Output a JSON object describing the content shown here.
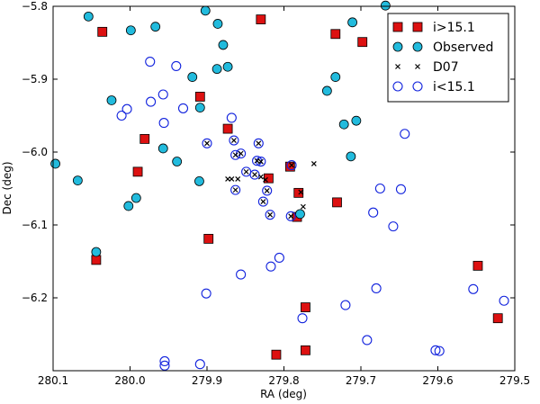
{
  "chart_data": {
    "type": "scatter",
    "title": "",
    "xlabel": "RA (deg)",
    "ylabel": "Dec (deg)",
    "xlim": [
      280.1,
      279.5
    ],
    "ylim": [
      -6.3,
      -5.8
    ],
    "grid": false,
    "legend_position": "top-right",
    "colors": {
      "red": "#dd1111",
      "cyan": "#22bbdd",
      "blue": "#1122dd",
      "black": "#000000"
    },
    "x_ticks": [
      {
        "value": 280.1,
        "label": "280.1"
      },
      {
        "value": 280.0,
        "label": "280.0"
      },
      {
        "value": 279.9,
        "label": "279.9"
      },
      {
        "value": 279.8,
        "label": "279.8"
      },
      {
        "value": 279.7,
        "label": "279.7"
      },
      {
        "value": 279.6,
        "label": "279.6"
      },
      {
        "value": 279.5,
        "label": "279.5"
      }
    ],
    "y_ticks": [
      {
        "value": -5.8,
        "label": "−5.8"
      },
      {
        "value": -5.9,
        "label": "−5.9"
      },
      {
        "value": -6.0,
        "label": "−6.0"
      },
      {
        "value": -6.1,
        "label": "−6.1"
      },
      {
        "value": -6.2,
        "label": "−6.2"
      }
    ],
    "series": [
      {
        "name": "i>15.1",
        "marker": "square",
        "color": "#dd1111",
        "points": [
          [
            280.036,
            -5.835
          ],
          [
            279.83,
            -5.818
          ],
          [
            279.733,
            -5.838
          ],
          [
            279.698,
            -5.849
          ],
          [
            279.909,
            -5.924
          ],
          [
            279.981,
            -5.982
          ],
          [
            279.99,
            -6.027
          ],
          [
            279.873,
            -5.968
          ],
          [
            279.792,
            -6.02
          ],
          [
            279.82,
            -6.036
          ],
          [
            279.781,
            -6.056
          ],
          [
            279.783,
            -6.089
          ],
          [
            279.731,
            -6.069
          ],
          [
            279.898,
            -6.119
          ],
          [
            280.044,
            -6.148
          ],
          [
            279.548,
            -6.156
          ],
          [
            279.772,
            -6.213
          ],
          [
            279.522,
            -6.228
          ],
          [
            279.81,
            -6.278
          ],
          [
            279.772,
            -6.272
          ]
        ]
      },
      {
        "name": "Observed",
        "marker": "circle-filled",
        "color": "#22bbdd",
        "points": [
          [
            280.054,
            -5.814
          ],
          [
            279.902,
            -5.806
          ],
          [
            279.668,
            -5.799
          ],
          [
            279.999,
            -5.833
          ],
          [
            279.967,
            -5.828
          ],
          [
            279.886,
            -5.824
          ],
          [
            279.711,
            -5.822
          ],
          [
            279.879,
            -5.853
          ],
          [
            279.919,
            -5.897
          ],
          [
            279.887,
            -5.886
          ],
          [
            279.873,
            -5.883
          ],
          [
            279.733,
            -5.897
          ],
          [
            279.744,
            -5.916
          ],
          [
            280.024,
            -5.929
          ],
          [
            279.909,
            -5.939
          ],
          [
            279.706,
            -5.957
          ],
          [
            279.722,
            -5.962
          ],
          [
            279.957,
            -5.995
          ],
          [
            279.939,
            -6.013
          ],
          [
            279.713,
            -6.006
          ],
          [
            280.097,
            -6.016
          ],
          [
            280.068,
            -6.039
          ],
          [
            279.91,
            -6.04
          ],
          [
            279.992,
            -6.063
          ],
          [
            280.002,
            -6.074
          ],
          [
            279.779,
            -6.085
          ],
          [
            280.044,
            -6.137
          ]
        ]
      },
      {
        "name": "D07",
        "marker": "x",
        "color": "#000000",
        "points": [
          [
            279.9,
            -5.988
          ],
          [
            279.865,
            -5.984
          ],
          [
            279.833,
            -5.988
          ],
          [
            279.863,
            -6.004
          ],
          [
            279.856,
            -6.002
          ],
          [
            279.835,
            -6.012
          ],
          [
            279.83,
            -6.013
          ],
          [
            279.79,
            -6.018
          ],
          [
            279.761,
            -6.016
          ],
          [
            279.849,
            -6.027
          ],
          [
            279.838,
            -6.031
          ],
          [
            279.83,
            -6.034
          ],
          [
            279.824,
            -6.038
          ],
          [
            279.86,
            -6.037
          ],
          [
            279.868,
            -6.037
          ],
          [
            279.863,
            -6.052
          ],
          [
            279.778,
            -6.055
          ],
          [
            279.822,
            -6.053
          ],
          [
            279.827,
            -6.068
          ],
          [
            279.775,
            -6.075
          ],
          [
            279.818,
            -6.086
          ],
          [
            279.791,
            -6.088
          ],
          [
            279.873,
            -6.037
          ]
        ]
      },
      {
        "name": "i<15.1",
        "marker": "circle-open",
        "color": "#1122dd",
        "points": [
          [
            279.974,
            -5.876
          ],
          [
            279.94,
            -5.882
          ],
          [
            280.011,
            -5.95
          ],
          [
            280.004,
            -5.941
          ],
          [
            279.973,
            -5.931
          ],
          [
            279.957,
            -5.921
          ],
          [
            279.931,
            -5.94
          ],
          [
            279.956,
            -5.96
          ],
          [
            279.868,
            -5.953
          ],
          [
            279.9,
            -5.988
          ],
          [
            279.865,
            -5.984
          ],
          [
            279.833,
            -5.988
          ],
          [
            279.863,
            -6.004
          ],
          [
            279.856,
            -6.002
          ],
          [
            279.835,
            -6.012
          ],
          [
            279.83,
            -6.013
          ],
          [
            279.79,
            -6.018
          ],
          [
            279.849,
            -6.027
          ],
          [
            279.838,
            -6.031
          ],
          [
            279.863,
            -6.052
          ],
          [
            279.822,
            -6.053
          ],
          [
            279.827,
            -6.068
          ],
          [
            279.818,
            -6.086
          ],
          [
            279.791,
            -6.088
          ],
          [
            279.643,
            -5.975
          ],
          [
            279.675,
            -6.05
          ],
          [
            279.648,
            -6.051
          ],
          [
            279.684,
            -6.083
          ],
          [
            279.658,
            -6.102
          ],
          [
            279.817,
            -6.157
          ],
          [
            279.806,
            -6.145
          ],
          [
            279.856,
            -6.168
          ],
          [
            279.68,
            -6.187
          ],
          [
            279.901,
            -6.194
          ],
          [
            279.554,
            -6.188
          ],
          [
            279.514,
            -6.204
          ],
          [
            279.72,
            -6.21
          ],
          [
            279.776,
            -6.228
          ],
          [
            279.692,
            -6.258
          ],
          [
            279.603,
            -6.272
          ],
          [
            279.598,
            -6.273
          ],
          [
            279.955,
            -6.287
          ],
          [
            279.955,
            -6.293
          ],
          [
            279.909,
            -6.291
          ]
        ]
      }
    ],
    "legend": [
      {
        "label": "i>15.1",
        "marker": "square",
        "color": "#dd1111"
      },
      {
        "label": "Observed",
        "marker": "circle-filled",
        "color": "#22bbdd"
      },
      {
        "label": "D07",
        "marker": "x",
        "color": "#000000"
      },
      {
        "label": "i<15.1",
        "marker": "circle-open",
        "color": "#1122dd"
      }
    ]
  }
}
